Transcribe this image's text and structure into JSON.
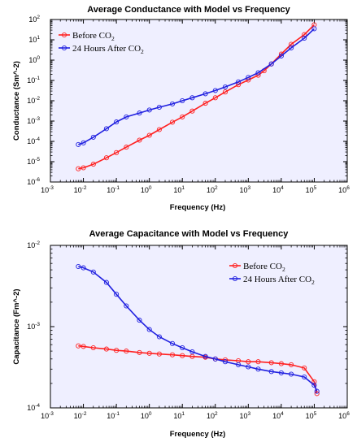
{
  "chart_data": [
    {
      "type": "line",
      "title": "Average Conductance with Model vs Frequency",
      "xlabel": "Frequency (Hz)",
      "ylabel": "Conductance (Sm^-2)",
      "xscale": "log",
      "yscale": "log",
      "xlim": [
        0.001,
        1000000
      ],
      "ylim": [
        1e-06,
        100
      ],
      "x_tick_exponents": [
        "-3",
        "-2",
        "-1",
        "0",
        "1",
        "2",
        "3",
        "4",
        "5",
        "6"
      ],
      "y_tick_exponents": [
        "-6",
        "-5",
        "-4",
        "-3",
        "-2",
        "-1",
        "0",
        "1",
        "2"
      ],
      "tick_base": "10",
      "legend_position": "top-left",
      "series": [
        {
          "name_main": "Before CO",
          "name_sub": "2",
          "color": "#ff2020",
          "x": [
            0.007,
            0.01,
            0.02,
            0.05,
            0.1,
            0.2,
            0.5,
            1,
            2,
            5,
            10,
            20,
            50,
            100,
            200,
            500,
            1000,
            2000,
            3000,
            5000,
            10000,
            20000,
            50000,
            100000
          ],
          "y": [
            4.5e-06,
            5e-06,
            7.5e-06,
            1.55e-05,
            2.8e-05,
            5.2e-05,
            0.000115,
            0.0002,
            0.00038,
            0.00088,
            0.0016,
            0.0031,
            0.0075,
            0.014,
            0.027,
            0.062,
            0.105,
            0.18,
            0.3,
            0.65,
            2,
            6,
            18,
            55
          ]
        },
        {
          "name_main": "24 Hours After CO",
          "name_sub": "2",
          "color": "#2020e0",
          "x": [
            0.007,
            0.01,
            0.02,
            0.05,
            0.1,
            0.2,
            0.5,
            1,
            2,
            5,
            10,
            20,
            50,
            100,
            200,
            500,
            1000,
            2000,
            5000,
            10000,
            20000,
            50000,
            100000
          ],
          "y": [
            7e-05,
            8.5e-05,
            0.00016,
            0.00042,
            0.0009,
            0.0016,
            0.0025,
            0.0035,
            0.0048,
            0.007,
            0.01,
            0.014,
            0.022,
            0.032,
            0.048,
            0.085,
            0.14,
            0.24,
            0.65,
            1.6,
            4,
            12,
            35
          ]
        }
      ]
    },
    {
      "type": "line",
      "title": "Average Capacitance with Model vs Frequency",
      "xlabel": "Frequency (Hz)",
      "ylabel": "Capacitance (Fm^-2)",
      "xscale": "log",
      "yscale": "log",
      "xlim": [
        0.001,
        1000000
      ],
      "ylim": [
        0.0001,
        0.01
      ],
      "x_tick_exponents": [
        "-3",
        "-2",
        "-1",
        "0",
        "1",
        "2",
        "3",
        "4",
        "5",
        "6"
      ],
      "y_tick_exponents": [
        "-4",
        "-3",
        "-2"
      ],
      "tick_base": "10",
      "legend_position": "top-right",
      "series": [
        {
          "name_main": "Before CO",
          "name_sub": "2",
          "color": "#ff2020",
          "x": [
            0.007,
            0.01,
            0.02,
            0.05,
            0.1,
            0.2,
            0.5,
            1,
            2,
            5,
            10,
            20,
            50,
            100,
            200,
            500,
            1000,
            2000,
            5000,
            10000,
            20000,
            50000,
            100000,
            120000
          ],
          "y": [
            0.00058,
            0.00057,
            0.00055,
            0.00053,
            0.00051,
            0.0005,
            0.00048,
            0.00047,
            0.00046,
            0.00045,
            0.00044,
            0.00043,
            0.00042,
            0.0004,
            0.00039,
            0.00038,
            0.00037,
            0.00037,
            0.00036,
            0.00035,
            0.00034,
            0.00031,
            0.00021,
            0.00015
          ]
        },
        {
          "name_main": "24 Hours After CO",
          "name_sub": "2",
          "color": "#2020e0",
          "x": [
            0.007,
            0.01,
            0.02,
            0.05,
            0.1,
            0.2,
            0.5,
            1,
            2,
            5,
            10,
            20,
            50,
            100,
            200,
            500,
            1000,
            2000,
            5000,
            10000,
            20000,
            50000,
            100000,
            120000
          ],
          "y": [
            0.0055,
            0.0053,
            0.0047,
            0.0035,
            0.0025,
            0.0018,
            0.0012,
            0.00092,
            0.00075,
            0.00062,
            0.00055,
            0.00049,
            0.00043,
            0.0004,
            0.00037,
            0.00034,
            0.00032,
            0.0003,
            0.00028,
            0.00027,
            0.00026,
            0.00024,
            0.00019,
            0.00016
          ]
        }
      ]
    }
  ]
}
